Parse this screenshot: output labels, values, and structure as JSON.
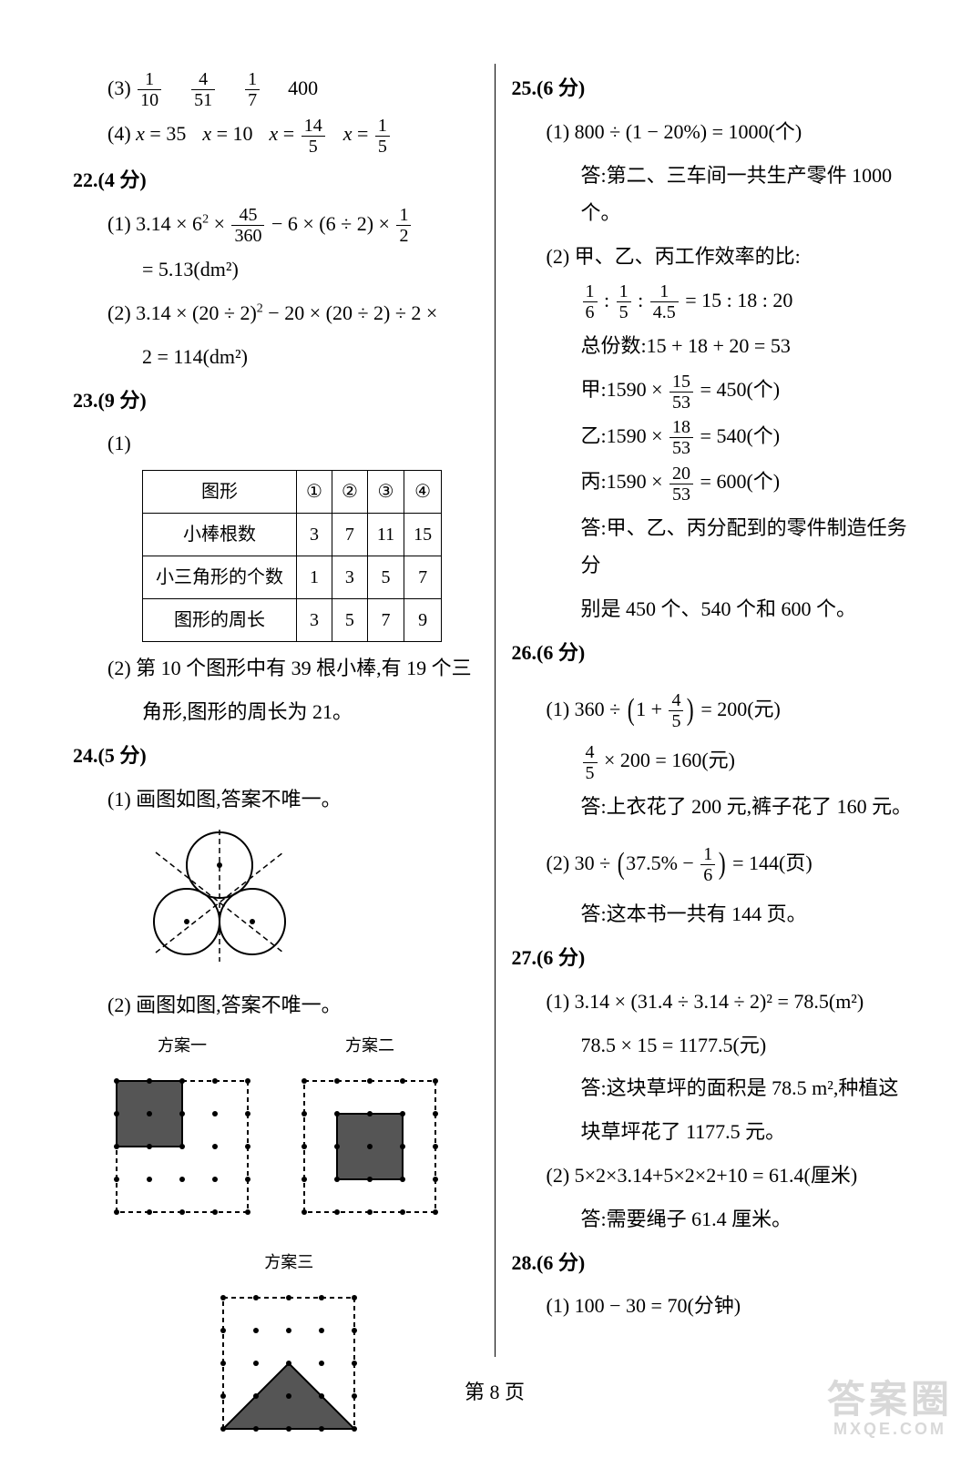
{
  "left": {
    "q21_3": {
      "f1_n": "1",
      "f1_d": "10",
      "f2_n": "4",
      "f2_d": "51",
      "f3_n": "1",
      "f3_d": "7",
      "last": "400"
    },
    "q21_4": {
      "a": "x = 35",
      "b": "x = 10",
      "c_n": "14",
      "c_d": "5",
      "d_n": "1",
      "d_d": "5"
    },
    "q22_head": "22.(4 分)",
    "q22_1a": "(1) 3.14 × 6",
    "q22_1b": " × ",
    "q22_1c_n": "45",
    "q22_1c_d": "360",
    "q22_1d": " − 6 × (6 ÷ 2) × ",
    "q22_1e_n": "1",
    "q22_1e_d": "2",
    "q22_1res": "= 5.13(dm²)",
    "q22_2a": "(2) 3.14 × (20 ÷ 2)",
    "q22_2b": " − 20 × (20 ÷ 2) ÷ 2 ×",
    "q22_2res": "2 = 114(dm²)",
    "q23_head": "23.(9 分)",
    "q23_sub": "(1)",
    "table": {
      "headers": [
        "图形",
        "①",
        "②",
        "③",
        "④"
      ],
      "rows": [
        [
          "小棒根数",
          "3",
          "7",
          "11",
          "15"
        ],
        [
          "小三角形的个数",
          "1",
          "3",
          "5",
          "7"
        ],
        [
          "图形的周长",
          "3",
          "5",
          "7",
          "9"
        ]
      ]
    },
    "q23_2a": "(2) 第 10 个图形中有 39 根小棒,有 19 个三",
    "q23_2b": "角形,图形的周长为 21。",
    "q24_head": "24.(5 分)",
    "q24_1": "(1) 画图如图,答案不唯一。",
    "q24_2": "(2) 画图如图,答案不唯一。",
    "caps": [
      "方案一",
      "方案二",
      "方案三"
    ]
  },
  "right": {
    "q25_head": "25.(6 分)",
    "q25_1": "(1) 800 ÷ (1 − 20%) = 1000(个)",
    "q25_1ans": "答:第二、三车间一共生产零件 1000 个。",
    "q25_2": "(2) 甲、乙、丙工作效率的比:",
    "q25_2r1a_n": "1",
    "q25_2r1a_d": "6",
    "q25_2r1b_n": "1",
    "q25_2r1b_d": "5",
    "q25_2r1c_n": "1",
    "q25_2r1c_d": "4.5",
    "q25_2r1r": " = 15 : 18 : 20",
    "q25_2r2": "总份数:15 + 18 + 20 = 53",
    "q25_2r3a": "甲:1590 × ",
    "q25_2r3n": "15",
    "q25_2r3d": "53",
    "q25_2r3r": " = 450(个)",
    "q25_2r4a": "乙:1590 × ",
    "q25_2r4n": "18",
    "q25_2r4d": "53",
    "q25_2r4r": " = 540(个)",
    "q25_2r5a": "丙:1590 × ",
    "q25_2r5n": "20",
    "q25_2r5d": "53",
    "q25_2r5r": " = 600(个)",
    "q25_2ans1": "答:甲、乙、丙分配到的零件制造任务分",
    "q25_2ans2": "别是 450 个、540 个和 600 个。",
    "q26_head": "26.(6 分)",
    "q26_1a": "(1) 360 ÷ ",
    "q26_1b": "1 + ",
    "q26_1n": "4",
    "q26_1d": "5",
    "q26_1r": " = 200(元)",
    "q26_1c_n": "4",
    "q26_1c_d": "5",
    "q26_1c_r": " × 200 = 160(元)",
    "q26_1ans": "答:上衣花了 200 元,裤子花了 160 元。",
    "q26_2a": "(2) 30 ÷ ",
    "q26_2b": "37.5% − ",
    "q26_2n": "1",
    "q26_2d": "6",
    "q26_2r": " = 144(页)",
    "q26_2ans": "答:这本书一共有 144 页。",
    "q27_head": "27.(6 分)",
    "q27_1": "(1) 3.14 × (31.4 ÷ 3.14 ÷ 2)² = 78.5(m²)",
    "q27_1b": "78.5 × 15 = 1177.5(元)",
    "q27_1ans1": "答:这块草坪的面积是 78.5 m²,种植这",
    "q27_1ans2": "块草坪花了 1177.5 元。",
    "q27_2": "(2) 5×2×3.14+5×2×2+10 = 61.4(厘米)",
    "q27_2ans": "答:需要绳子 61.4 厘米。",
    "q28_head": "28.(6 分)",
    "q28_1": "(1) 100 − 30 = 70(分钟)"
  },
  "pagenum": "第 8 页",
  "watermark_big": "答案圈",
  "watermark_small": "MXQE.COM",
  "svg": {
    "stroke": "#000000",
    "fill": "#555555",
    "dot_r": 3,
    "grid_n": 5,
    "grid_step": 36
  }
}
